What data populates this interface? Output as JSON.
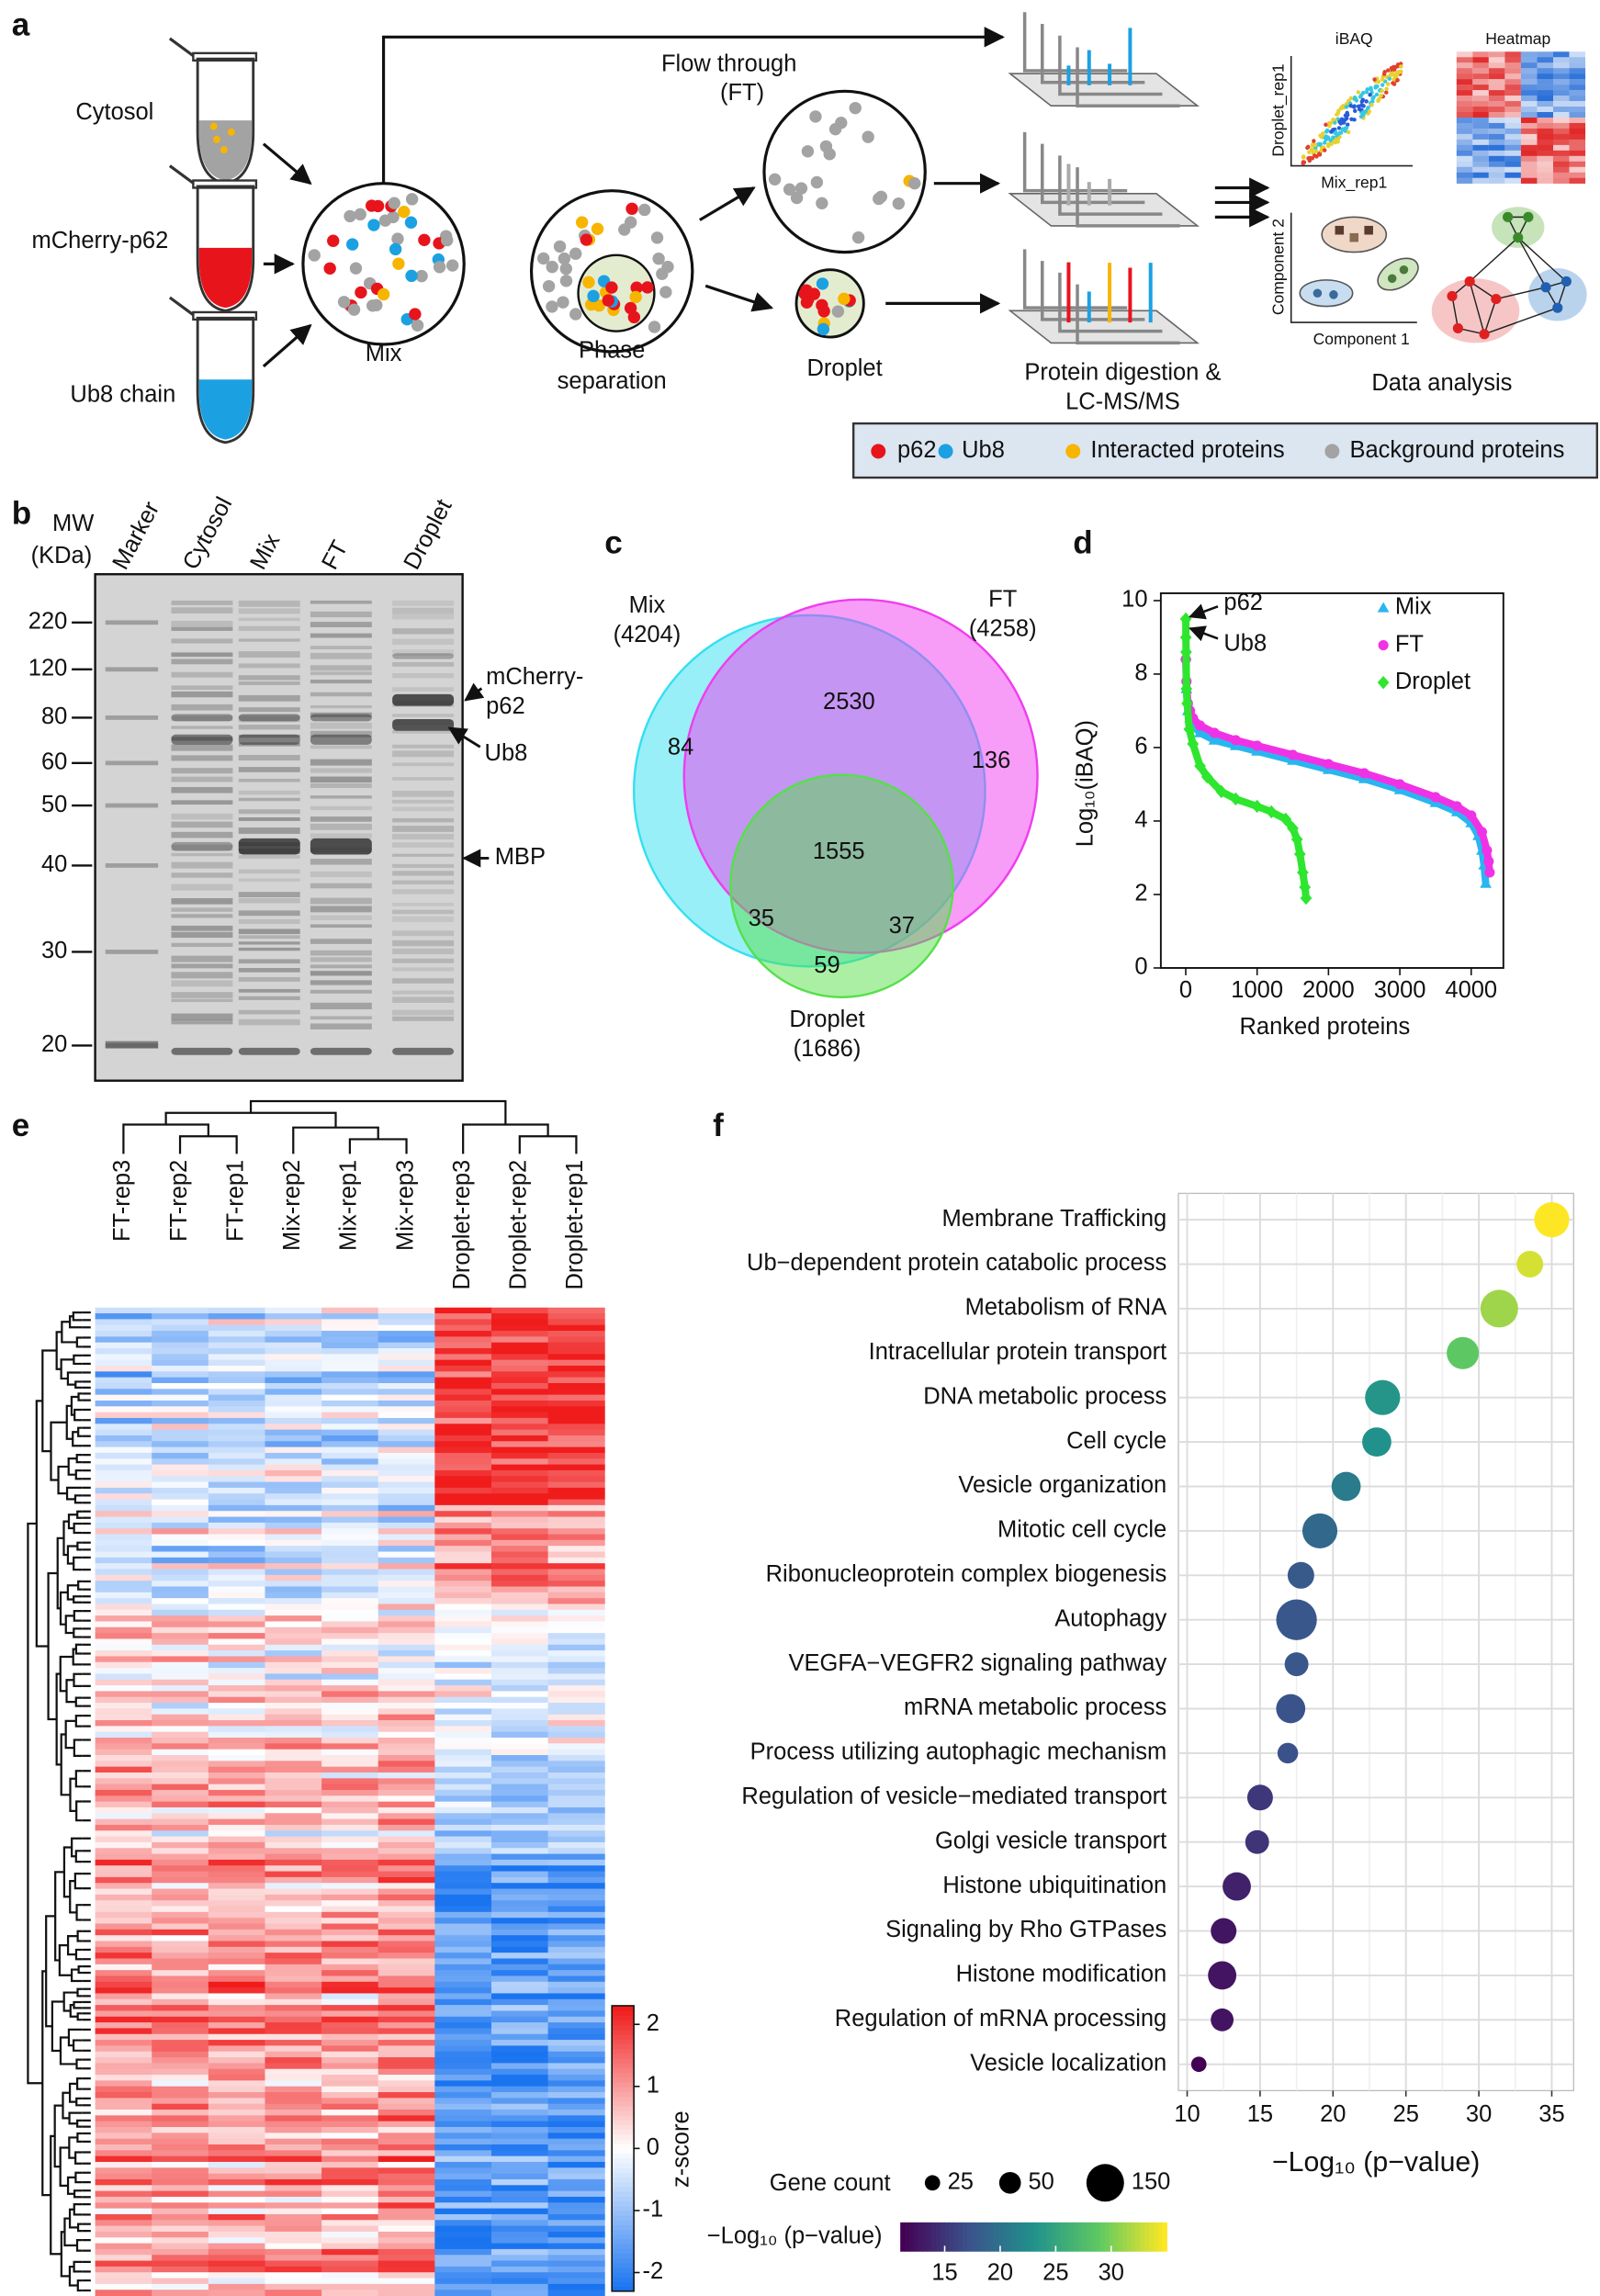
{
  "panel_labels": [
    "a",
    "b",
    "c",
    "d",
    "e",
    "f"
  ],
  "diagram": {
    "tubes": [
      "Cytosol",
      "mCherry-p62",
      "Ub8 chain"
    ],
    "mix": "Mix",
    "phase": [
      "Phase",
      "separation"
    ],
    "flow": [
      "Flow through",
      "(FT)"
    ],
    "droplet": "Droplet",
    "digestion": [
      "Protein digestion &",
      "LC-MS/MS"
    ],
    "analysis": "Data analysis",
    "ibaq_title": "iBAQ",
    "ibaq_y": "Droplet_rep1",
    "ibaq_x": "Mix_rep1",
    "heatmap_title": "Heatmap",
    "pca_y": "Component 2",
    "pca_x": "Component 1",
    "legend": [
      {
        "name": "p62",
        "color": "#e8141c"
      },
      {
        "name": "Ub8",
        "color": "#1ba1e2"
      },
      {
        "name": "Interacted proteins",
        "color": "#f7b500"
      },
      {
        "name": "Background proteins",
        "color": "#a3a3a3"
      }
    ]
  },
  "gel": {
    "mw_title": [
      "MW",
      "(KDa)"
    ],
    "lanes": [
      "Marker",
      "Cytosol",
      "Mix",
      "FT",
      "Droplet"
    ],
    "markers": [
      "220",
      "120",
      "80",
      "60",
      "50",
      "40",
      "30",
      "20"
    ],
    "annotations": [
      [
        "mCherry-",
        "p62"
      ],
      [
        "Ub8"
      ],
      [
        "MBP"
      ]
    ]
  },
  "heatmap": {
    "samples": [
      "FT-rep3",
      "FT-rep2",
      "FT-rep1",
      "Mix-rep2",
      "Mix-rep1",
      "Mix-rep3",
      "Droplet-rep3",
      "Droplet-rep2",
      "Droplet-rep1"
    ],
    "colorbar": {
      "title": "z-score",
      "lim": [
        -2.3,
        2.3
      ],
      "ticks": [
        2,
        1,
        0,
        -1,
        -2
      ],
      "colors": [
        "#1a74f0",
        "#ffffff",
        "#f01c1c"
      ]
    }
  },
  "chart_data": [
    {
      "type": "venn",
      "sets": [
        {
          "name": "Mix",
          "size": 4204,
          "size_label": "(4204)",
          "color": "#33e0f0"
        },
        {
          "name": "FT",
          "size": 4258,
          "size_label": "(4258)",
          "color": "#f03cf0"
        },
        {
          "name": "Droplet",
          "size": 1686,
          "size_label": "(1686)",
          "color": "#55e04a"
        }
      ],
      "regions": [
        2530,
        84,
        136,
        1555,
        35,
        37,
        59
      ]
    },
    {
      "type": "line",
      "xlabel": "Ranked proteins",
      "ylabel": "Log₁₀(iBAQ)",
      "xlim": [
        -349,
        4451
      ],
      "ylim": [
        0,
        10.2
      ],
      "xticks": [
        0,
        1000,
        2000,
        3000,
        4000
      ],
      "yticks": [
        0,
        2,
        4,
        6,
        8,
        10
      ],
      "annotations": [
        "p62",
        "Ub8"
      ],
      "series": [
        {
          "name": "Mix",
          "color": "#29b6f0",
          "marker": "triangle",
          "x": [
            1,
            10,
            30,
            60,
            100,
            200,
            400,
            700,
            1000,
            1500,
            2000,
            2500,
            3000,
            3500,
            3800,
            4000,
            4100,
            4150,
            4180,
            4204
          ],
          "values": [
            8.5,
            7.6,
            7.0,
            6.8,
            6.6,
            6.4,
            6.2,
            6.05,
            5.9,
            5.65,
            5.4,
            5.15,
            4.85,
            4.5,
            4.25,
            3.95,
            3.6,
            3.2,
            2.8,
            2.3
          ]
        },
        {
          "name": "FT",
          "color": "#f032e6",
          "marker": "circle",
          "x": [
            1,
            10,
            30,
            60,
            100,
            200,
            400,
            700,
            1000,
            1500,
            2000,
            2500,
            3000,
            3500,
            3800,
            4000,
            4150,
            4220,
            4245,
            4258
          ],
          "values": [
            8.4,
            7.8,
            7.2,
            7.0,
            6.8,
            6.6,
            6.4,
            6.2,
            6.05,
            5.8,
            5.55,
            5.3,
            5.0,
            4.65,
            4.4,
            4.15,
            3.7,
            3.2,
            2.9,
            2.6
          ]
        },
        {
          "name": "Droplet",
          "color": "#2ee62e",
          "marker": "diamond",
          "x": [
            1,
            2,
            5,
            10,
            20,
            50,
            100,
            200,
            300,
            500,
            700,
            1000,
            1200,
            1400,
            1500,
            1560,
            1600,
            1640,
            1670,
            1686
          ],
          "values": [
            9.5,
            9.0,
            8.6,
            7.6,
            7.2,
            6.5,
            6.1,
            5.5,
            5.2,
            4.8,
            4.6,
            4.4,
            4.25,
            4.05,
            3.8,
            3.5,
            3.1,
            2.6,
            2.2,
            1.9
          ]
        }
      ]
    },
    {
      "type": "bubble",
      "xlabel": "−Log₁₀ (p−value)",
      "xlim": [
        9.4,
        36.5
      ],
      "xticks": [
        10,
        15,
        20,
        25,
        30,
        35
      ],
      "grid": true,
      "categories": [
        "Membrane Trafficking",
        "Ub−dependent protein catabolic process",
        "Metabolism of RNA",
        "Intracellular protein transport",
        "DNA metabolic process",
        "Cell cycle",
        "Vesicle organization",
        "Mitotic cell cycle",
        "Ribonucleoprotein complex biogenesis",
        "Autophagy",
        "VEGFA−VEGFR2 signaling pathway",
        "mRNA metabolic process",
        "Process utilizing autophagic mechanism",
        "Regulation of vesicle−mediated transport",
        "Golgi vesicle transport",
        "Histone ubiquitination",
        "Signaling by Rho GTPases",
        "Histone modification",
        "Regulation of mRNA processing",
        "Vesicle localization"
      ],
      "values": [
        35.0,
        33.5,
        31.4,
        28.9,
        23.4,
        23.0,
        20.9,
        19.1,
        17.8,
        17.5,
        17.5,
        17.1,
        16.9,
        15.0,
        14.8,
        13.4,
        12.5,
        12.4,
        12.4,
        10.8
      ],
      "sizes": [
        130,
        75,
        150,
        110,
        130,
        90,
        90,
        130,
        75,
        175,
        60,
        90,
        45,
        70,
        60,
        85,
        70,
        85,
        55,
        25
      ],
      "size_legend": {
        "title": "Gene count",
        "values": [
          25,
          50,
          150
        ]
      },
      "colorbar": {
        "title": "−Log₁₀ (p−value)",
        "lim": [
          11,
          35
        ],
        "ticks": [
          15,
          20,
          25,
          30
        ],
        "colors": [
          "#440154",
          "#3b528b",
          "#21918c",
          "#5ec962",
          "#fde725"
        ]
      }
    }
  ]
}
